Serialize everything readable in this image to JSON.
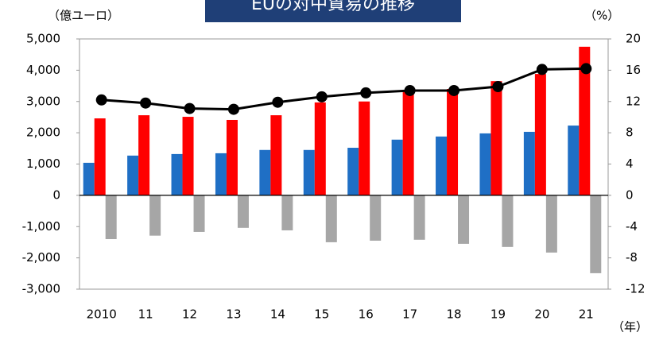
{
  "chart_data": {
    "type": "bar_line",
    "title": "EUの対中貿易の推移",
    "y_unit": "（億ユーロ）",
    "y2_unit": "（%）",
    "x_unit": "（年）",
    "categories": [
      "2010",
      "11",
      "12",
      "13",
      "14",
      "15",
      "16",
      "17",
      "18",
      "19",
      "20",
      "21"
    ],
    "series": [
      {
        "color": "#1f6fc5",
        "values": [
          1040,
          1270,
          1320,
          1345,
          1450,
          1450,
          1520,
          1780,
          1880,
          1980,
          2030,
          2230
        ]
      },
      {
        "color": "#ff0000",
        "values": [
          2460,
          2560,
          2510,
          2410,
          2560,
          2970,
          3000,
          3350,
          3400,
          3650,
          3880,
          4750
        ]
      },
      {
        "color": "#a6a6a6",
        "values": [
          -1400,
          -1290,
          -1170,
          -1040,
          -1120,
          -1500,
          -1450,
          -1420,
          -1550,
          -1650,
          -1830,
          -2490
        ]
      },
      {
        "color": "#000000",
        "axis": "y2",
        "values": [
          12.2,
          11.8,
          11.1,
          11.0,
          11.9,
          12.6,
          13.1,
          13.4,
          13.4,
          13.9,
          16.1,
          16.2
        ]
      }
    ],
    "ylim": [
      -3000,
      5000
    ],
    "yticks": [
      {
        "value": -3000,
        "label": "-3,000"
      },
      {
        "value": -2000,
        "label": "-2,000"
      },
      {
        "value": -1000,
        "label": "-1,000"
      },
      0,
      {
        "value": 1000,
        "label": "1,000"
      },
      {
        "value": 2000,
        "label": "2,000"
      },
      {
        "value": 3000,
        "label": "3,000"
      },
      {
        "value": 4000,
        "label": "4,000"
      },
      {
        "value": 5000,
        "label": "5,000"
      }
    ],
    "y2lim": [
      -12,
      20
    ],
    "y2ticks": [
      -12,
      -8,
      -4,
      0,
      4,
      8,
      12,
      16,
      20
    ]
  }
}
